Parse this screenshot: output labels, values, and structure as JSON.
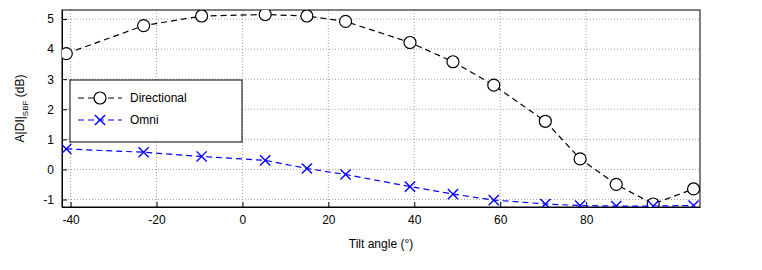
{
  "chart_data": {
    "type": "line",
    "xlabel": "Tilt angle (°)",
    "ylabel": [
      "A|DI|",
      "SBF",
      " (dB)"
    ],
    "x": [
      -41,
      -23,
      -9.5,
      5.3,
      15,
      24,
      39,
      49,
      58.5,
      70.5,
      78.6,
      87,
      95.6,
      105
    ],
    "series": [
      {
        "name": "Directional",
        "color": "#000000",
        "marker": "circle",
        "line_style": "dashed",
        "values": [
          3.85,
          4.78,
          5.1,
          5.15,
          5.1,
          4.92,
          4.22,
          3.58,
          2.8,
          1.6,
          0.35,
          -0.5,
          -1.15,
          -0.65
        ]
      },
      {
        "name": "Omni",
        "color": "#0000ff",
        "marker": "x",
        "line_style": "dashed",
        "values": [
          0.68,
          0.57,
          0.43,
          0.3,
          0.03,
          -0.17,
          -0.57,
          -0.82,
          -1.02,
          -1.15,
          -1.2,
          -1.22,
          -1.22,
          -1.2
        ]
      }
    ],
    "xlim": [
      -42,
      106.5
    ],
    "ylim": [
      -1.25,
      5.3
    ],
    "xticks": [
      -40,
      -20,
      0,
      20,
      40,
      60,
      80
    ],
    "yticks": [
      -1,
      0,
      1,
      2,
      3,
      4,
      5
    ],
    "grid": true,
    "legend": "left"
  }
}
